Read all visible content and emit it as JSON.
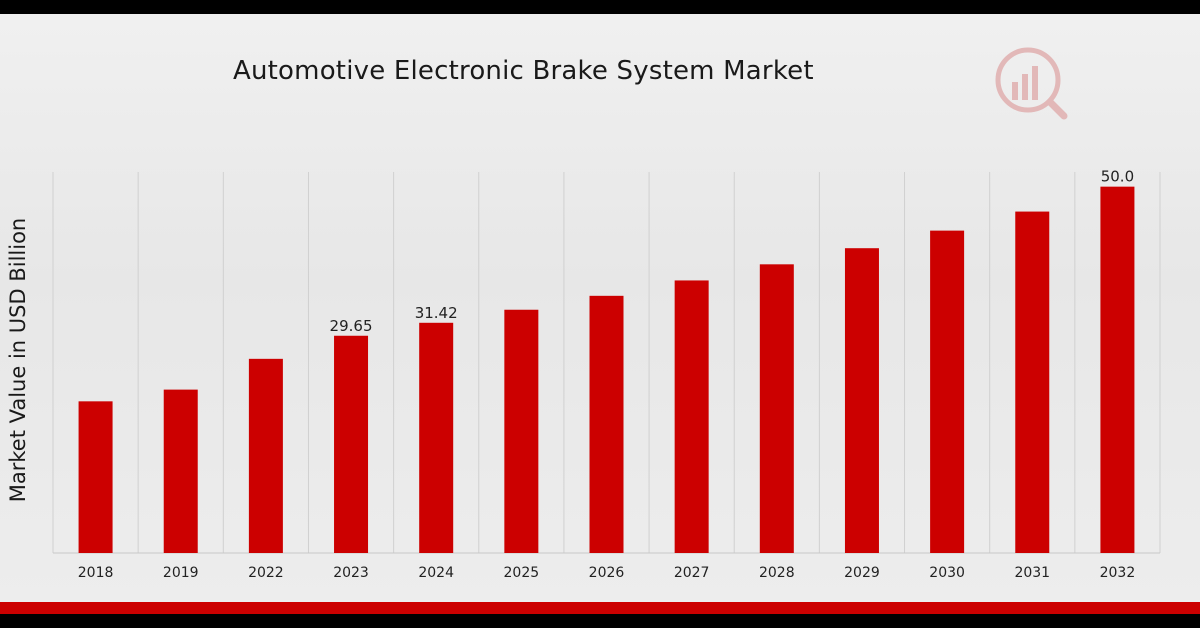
{
  "chart_data": {
    "type": "bar",
    "title": "Automotive Electronic Brake System Market",
    "xlabel": "",
    "ylabel": "Market Value in USD Billion",
    "categories": [
      "2018",
      "2019",
      "2022",
      "2023",
      "2024",
      "2025",
      "2026",
      "2027",
      "2028",
      "2029",
      "2030",
      "2031",
      "2032"
    ],
    "values": [
      20.7,
      22.3,
      26.5,
      29.65,
      31.42,
      33.2,
      35.1,
      37.2,
      39.4,
      41.6,
      44.0,
      46.6,
      50.0
    ],
    "data_labels": [
      {
        "category": "2023",
        "text": "29.65"
      },
      {
        "category": "2024",
        "text": "31.42"
      },
      {
        "category": "2032",
        "text": "50.0"
      }
    ],
    "ylim": [
      0,
      52
    ],
    "grid": "vertical",
    "bar_color": "#cc0000"
  }
}
